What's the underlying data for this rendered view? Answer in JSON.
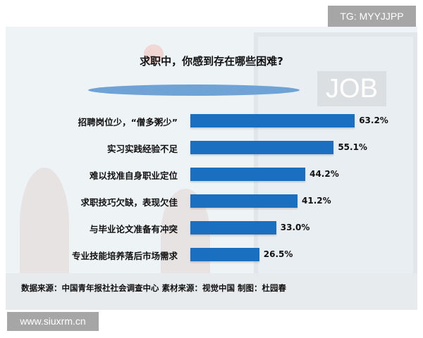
{
  "chart_data": {
    "type": "bar",
    "orientation": "horizontal",
    "title": "求职中，你感到存在哪些困难?",
    "categories": [
      "招聘岗位少，“僧多粥少”",
      "实习实践经验不足",
      "难以找准自身职业定位",
      "求职技巧欠缺，表现欠佳",
      "与毕业论文准备有冲突",
      "专业技能培养落后市场需求"
    ],
    "values": [
      63.2,
      55.1,
      44.2,
      41.2,
      33.0,
      26.5
    ],
    "value_labels": [
      "63.2%",
      "55.1%",
      "44.2%",
      "41.2%",
      "33.0%",
      "26.5%"
    ],
    "unit": "%",
    "bar_color": "#1a6fc0",
    "grid": false
  },
  "background": {
    "sign_text": "JOB"
  },
  "source": "数据来源：中国青年报社社会调查中心  素材来源：视觉中国 制图：杜园春",
  "watermarks": {
    "top": "TG: MYYJJPP",
    "bottom": "www.siuxrm.cn"
  }
}
